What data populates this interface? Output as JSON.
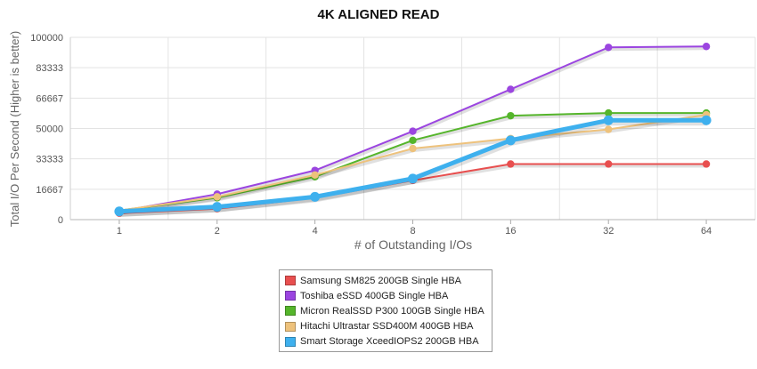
{
  "chart_data": {
    "type": "line",
    "title": "4K ALIGNED READ",
    "xlabel": "# of Outstanding I/Os",
    "ylabel": "Total I/O Per Second (Higher is better)",
    "x": [
      "1",
      "2",
      "4",
      "8",
      "16",
      "32",
      "64"
    ],
    "ylim": [
      0,
      100000
    ],
    "yticks": [
      "0",
      "16667",
      "33333",
      "50000",
      "66667",
      "83333",
      "100000"
    ],
    "grid": true,
    "legend_position": "bottom",
    "series": [
      {
        "name": "Samsung SM825 200GB Single HBA",
        "color": "#e84f4f",
        "values": [
          3500,
          6000,
          12000,
          21500,
          30500,
          30500,
          30500
        ]
      },
      {
        "name": "Toshiba eSSD 400GB Single HBA",
        "color": "#9b45e0",
        "values": [
          4500,
          14000,
          27000,
          48500,
          71500,
          94500,
          95000
        ]
      },
      {
        "name": "Micron RealSSD P300 100GB Single HBA",
        "color": "#55b52b",
        "values": [
          5000,
          12000,
          23500,
          43500,
          57000,
          58500,
          58500
        ]
      },
      {
        "name": "Hitachi Ultrastar SSD400M 400GB HBA",
        "color": "#eec27c",
        "values": [
          5000,
          12500,
          24500,
          39000,
          44500,
          49500,
          57500
        ]
      },
      {
        "name": "Smart Storage XceedIOPS2 200GB HBA",
        "color": "#3eb0ee",
        "values": [
          4500,
          7000,
          12500,
          22500,
          43500,
          54500,
          54500
        ]
      }
    ]
  }
}
